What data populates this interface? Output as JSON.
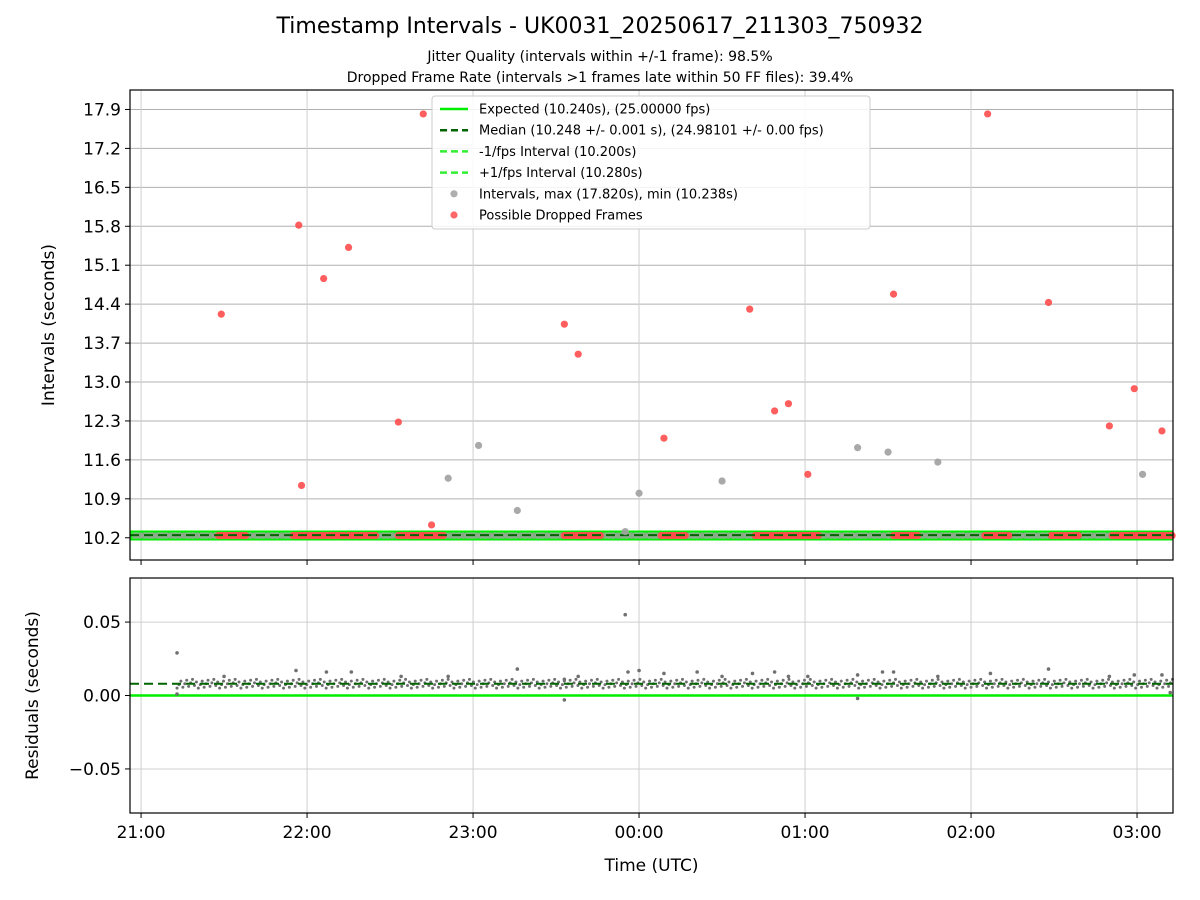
{
  "title": "Timestamp Intervals - UK0031_20250617_211303_750932",
  "subtitle_lines": [
    "Jitter Quality (intervals within +/-1 frame): 98.5%",
    "Dropped Frame Rate (intervals >1 frames late within 50 FF files): 39.4%"
  ],
  "colors": {
    "expected": "#00ee00",
    "median": "#006400",
    "fps_band": "#33ee33",
    "intervals": "#a0a0a0",
    "dropped": "#ff4d4d",
    "residual_points": "#707070",
    "grid": "#b0b0b0"
  },
  "chart_data": [
    {
      "type": "scatter",
      "panel": "top",
      "ylabel": "Intervals (seconds)",
      "xlim": [
        "20:56",
        "03:13"
      ],
      "ylim": [
        9.8,
        18.25
      ],
      "yticks": [
        "10.2",
        "10.9",
        "11.6",
        "12.3",
        "13.0",
        "13.7",
        "14.4",
        "15.1",
        "15.8",
        "16.5",
        "17.2",
        "17.9"
      ],
      "xticks": [
        "21:00",
        "22:00",
        "23:00",
        "00:00",
        "01:00",
        "02:00",
        "03:00"
      ],
      "grid": true,
      "legend_position": "upper center",
      "legend": [
        {
          "label": "Expected (10.240s), (25.00000 fps)",
          "style": "solid",
          "color": "#00ee00"
        },
        {
          "label": "Median (10.248 +/- 0.001 s), (24.98101 +/- 0.00 fps)",
          "style": "dashed",
          "color": "#006400"
        },
        {
          "label": "-1/fps Interval (10.200s)",
          "style": "dashed",
          "color": "#33ee33"
        },
        {
          "label": "+1/fps Interval (10.280s)",
          "style": "dashed",
          "color": "#33ee33"
        },
        {
          "label": "Intervals, max (17.820s), min (10.238s)",
          "style": "marker",
          "color": "#a0a0a0"
        },
        {
          "label": "Possible Dropped Frames",
          "style": "marker",
          "color": "#ff4d4d"
        }
      ],
      "reference_lines": [
        {
          "name": "Expected",
          "y": 10.24
        },
        {
          "name": "Median",
          "y": 10.248
        },
        {
          "name": "-1/fps Interval",
          "y": 10.2
        },
        {
          "name": "+1/fps Interval",
          "y": 10.28
        }
      ],
      "series": [
        {
          "name": "Intervals",
          "points": [
            [
              "22:51",
              11.27
            ],
            [
              "23:02",
              11.86
            ],
            [
              "23:16",
              10.69
            ],
            [
              "23:55",
              10.31
            ],
            [
              "00:00",
              11.0
            ],
            [
              "00:30",
              11.22
            ],
            [
              "01:19",
              11.82
            ],
            [
              "01:30",
              11.74
            ],
            [
              "01:48",
              11.56
            ],
            [
              "03:02",
              11.34
            ]
          ]
        },
        {
          "name": "Possible Dropped Frames",
          "points": [
            [
              "21:29",
              14.22
            ],
            [
              "21:57",
              15.82
            ],
            [
              "21:58",
              11.14
            ],
            [
              "22:06",
              14.86
            ],
            [
              "22:15",
              15.42
            ],
            [
              "22:33",
              12.28
            ],
            [
              "22:42",
              17.82
            ],
            [
              "22:45",
              10.43
            ],
            [
              "23:33",
              14.04
            ],
            [
              "23:38",
              13.5
            ],
            [
              "00:09",
              11.99
            ],
            [
              "00:40",
              14.31
            ],
            [
              "00:49",
              12.48
            ],
            [
              "00:54",
              12.61
            ],
            [
              "01:01",
              11.34
            ],
            [
              "01:32",
              14.58
            ],
            [
              "02:06",
              17.82
            ],
            [
              "02:28",
              14.43
            ],
            [
              "02:50",
              12.21
            ],
            [
              "02:59",
              12.88
            ],
            [
              "03:09",
              12.12
            ]
          ]
        }
      ],
      "dropped_frame_runs": [
        [
          "21:28",
          "21:38"
        ],
        [
          "21:55",
          "22:14"
        ],
        [
          "22:15",
          "22:25"
        ],
        [
          "22:33",
          "22:50"
        ],
        [
          "23:33",
          "23:47"
        ],
        [
          "00:08",
          "00:17"
        ],
        [
          "00:42",
          "01:05"
        ],
        [
          "01:32",
          "01:41"
        ],
        [
          "02:05",
          "02:14"
        ],
        [
          "02:29",
          "02:39"
        ],
        [
          "02:51",
          "03:13"
        ]
      ]
    },
    {
      "type": "scatter",
      "panel": "bottom",
      "xlabel": "Time (UTC)",
      "ylabel": "Residuals (seconds)",
      "xlim": [
        "20:56",
        "03:13"
      ],
      "ylim": [
        -0.08,
        0.08
      ],
      "yticks": [
        "0.05",
        "0.00",
        "−0.05"
      ],
      "ytick_values": [
        0.05,
        0.0,
        -0.05
      ],
      "xticks": [
        "21:00",
        "22:00",
        "23:00",
        "00:00",
        "01:00",
        "02:00",
        "03:00"
      ],
      "grid": true,
      "reference_lines": [
        {
          "name": "Expected",
          "y": 0.0
        },
        {
          "name": "Median",
          "y": 0.008
        }
      ],
      "series": [
        {
          "name": "Residuals",
          "baseline": 0.008,
          "points": [
            [
              "21:13",
              0.029
            ],
            [
              "21:13",
              0.001
            ],
            [
              "21:30",
              0.013
            ],
            [
              "21:56",
              0.017
            ],
            [
              "22:07",
              0.016
            ],
            [
              "22:16",
              0.016
            ],
            [
              "22:34",
              0.013
            ],
            [
              "22:51",
              0.013
            ],
            [
              "23:16",
              0.018
            ],
            [
              "23:33",
              0.011
            ],
            [
              "23:33",
              -0.003
            ],
            [
              "23:38",
              0.013
            ],
            [
              "23:55",
              0.055
            ],
            [
              "23:56",
              0.016
            ],
            [
              "00:00",
              0.017
            ],
            [
              "00:09",
              0.015
            ],
            [
              "00:21",
              0.016
            ],
            [
              "00:30",
              0.013
            ],
            [
              "00:41",
              0.015
            ],
            [
              "00:49",
              0.016
            ],
            [
              "00:54",
              0.013
            ],
            [
              "01:01",
              0.013
            ],
            [
              "01:19",
              0.014
            ],
            [
              "01:19",
              -0.002
            ],
            [
              "01:28",
              0.016
            ],
            [
              "01:32",
              0.016
            ],
            [
              "01:48",
              0.013
            ],
            [
              "02:07",
              0.015
            ],
            [
              "02:28",
              0.018
            ],
            [
              "02:50",
              0.013
            ],
            [
              "02:59",
              0.014
            ],
            [
              "03:09",
              0.014
            ],
            [
              "03:12",
              0.002
            ]
          ]
        }
      ]
    }
  ]
}
